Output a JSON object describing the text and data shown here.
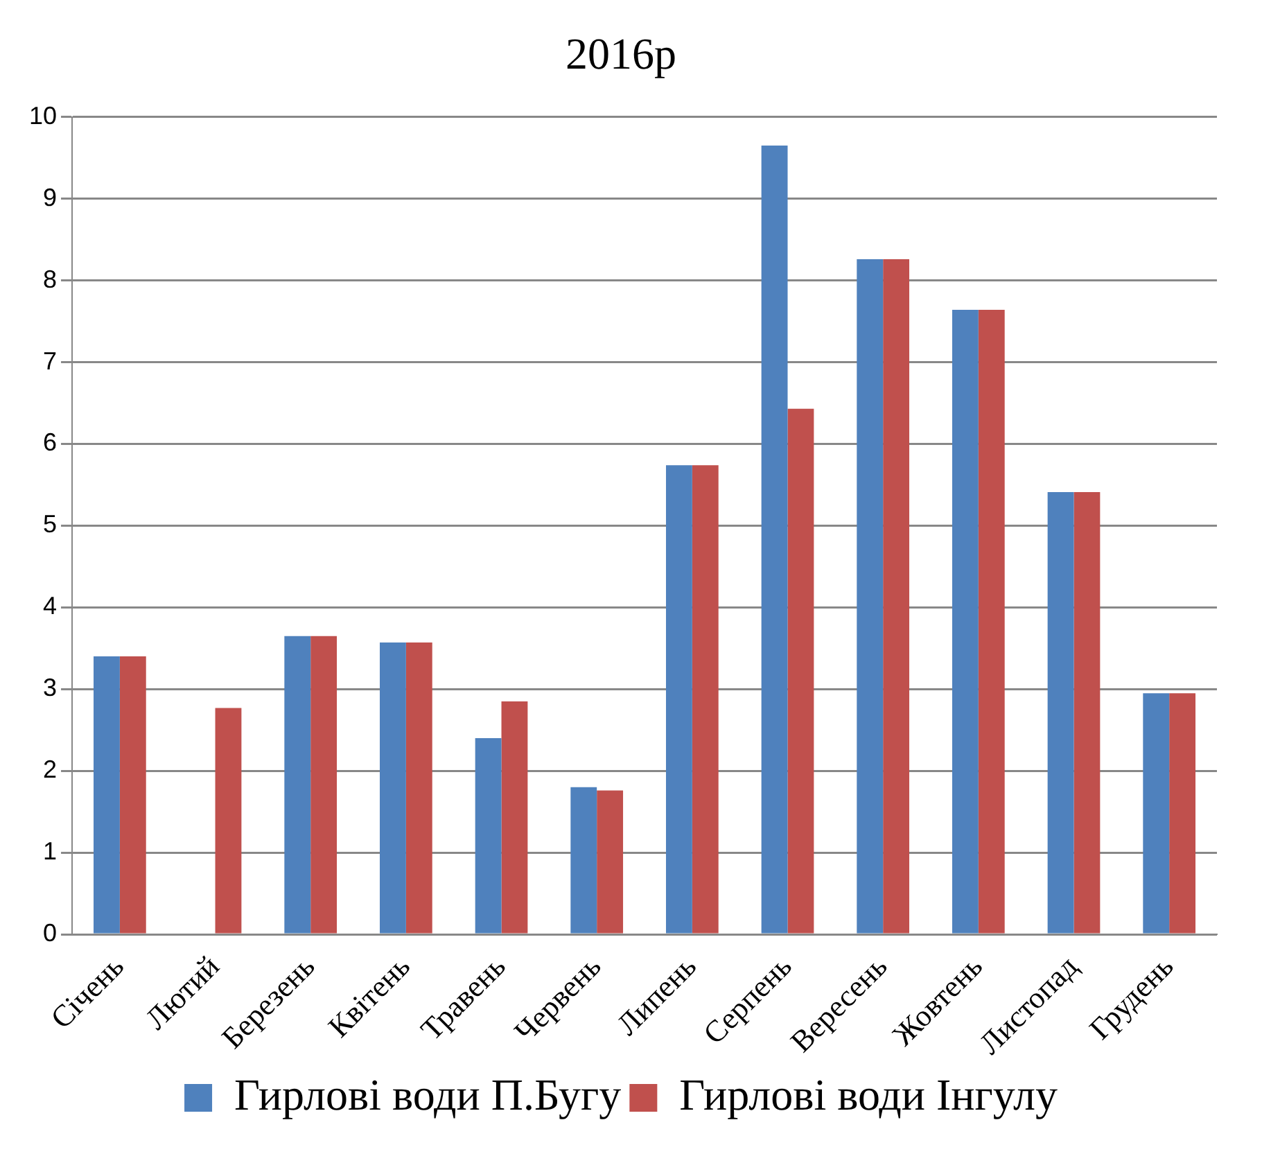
{
  "chart_data": {
    "type": "bar",
    "title": "2016р",
    "categories": [
      "Січень",
      "Лютий",
      "Березень",
      "Квітень",
      "Травень",
      "Червень",
      "Липень",
      "Серпень",
      "Вересень",
      "Жовтень",
      "Листопад",
      "Грудень"
    ],
    "series": [
      {
        "name": "Гирлові води П.Бугу",
        "color": "#4f81bd",
        "values": [
          3.4,
          null,
          3.65,
          3.57,
          2.4,
          1.8,
          5.74,
          9.65,
          8.26,
          7.64,
          5.41,
          2.95
        ]
      },
      {
        "name": "Гирлові води Інгулу",
        "color": "#c0504d",
        "values": [
          3.4,
          2.77,
          3.65,
          3.57,
          2.85,
          1.76,
          5.74,
          6.43,
          8.26,
          7.64,
          5.41,
          2.95
        ]
      }
    ],
    "ylim": [
      0,
      10
    ],
    "yticks": [
      0,
      1,
      2,
      3,
      4,
      5,
      6,
      7,
      8,
      9,
      10
    ],
    "grid": "y",
    "legend": "bottom"
  }
}
